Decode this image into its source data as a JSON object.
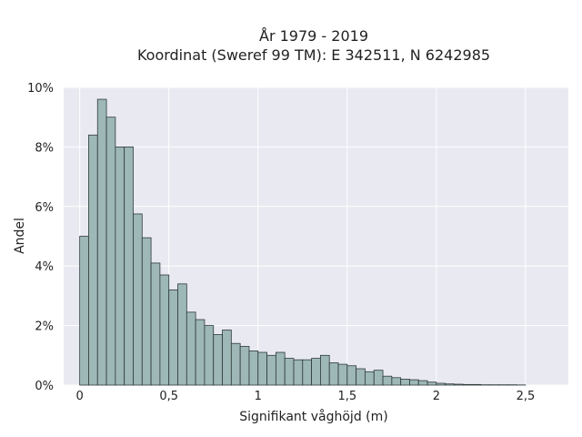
{
  "chart_data": {
    "type": "bar",
    "title_line1": "År 1979 - 2019",
    "title_line2": "Koordinat (Sweref 99 TM): E 342511, N 6242985",
    "xlabel": "Signifikant våghöjd (m)",
    "ylabel": "Andel",
    "xlim": [
      -0.09,
      2.74
    ],
    "ylim": [
      0,
      10
    ],
    "x_ticks": [
      {
        "value": 0,
        "label": "0"
      },
      {
        "value": 0.5,
        "label": "0,5"
      },
      {
        "value": 1,
        "label": "1"
      },
      {
        "value": 1.5,
        "label": "1,5"
      },
      {
        "value": 2,
        "label": "2"
      },
      {
        "value": 2.5,
        "label": "2,5"
      }
    ],
    "y_ticks": [
      {
        "value": 0,
        "label": "0%"
      },
      {
        "value": 2,
        "label": "2%"
      },
      {
        "value": 4,
        "label": "4%"
      },
      {
        "value": 6,
        "label": "6%"
      },
      {
        "value": 8,
        "label": "8%"
      },
      {
        "value": 10,
        "label": "10%"
      }
    ],
    "bin_start": 0,
    "bin_width": 0.05,
    "values": [
      5.0,
      8.4,
      9.6,
      9.0,
      8.0,
      8.0,
      5.75,
      4.95,
      4.1,
      3.7,
      3.2,
      3.4,
      2.45,
      2.2,
      2.0,
      1.7,
      1.85,
      1.4,
      1.3,
      1.15,
      1.1,
      1.0,
      1.1,
      0.9,
      0.85,
      0.85,
      0.9,
      1.0,
      0.75,
      0.7,
      0.65,
      0.55,
      0.45,
      0.5,
      0.3,
      0.25,
      0.2,
      0.18,
      0.15,
      0.1,
      0.06,
      0.04,
      0.03,
      0.02,
      0.02,
      0.01,
      0.01,
      0.01,
      0.01,
      0.005
    ],
    "grid": true,
    "colors": {
      "bar_fill": "#9db8b6",
      "bar_stroke": "#2f3a3a",
      "plot_bg": "#e9e9f1",
      "grid": "#ffffff"
    }
  }
}
